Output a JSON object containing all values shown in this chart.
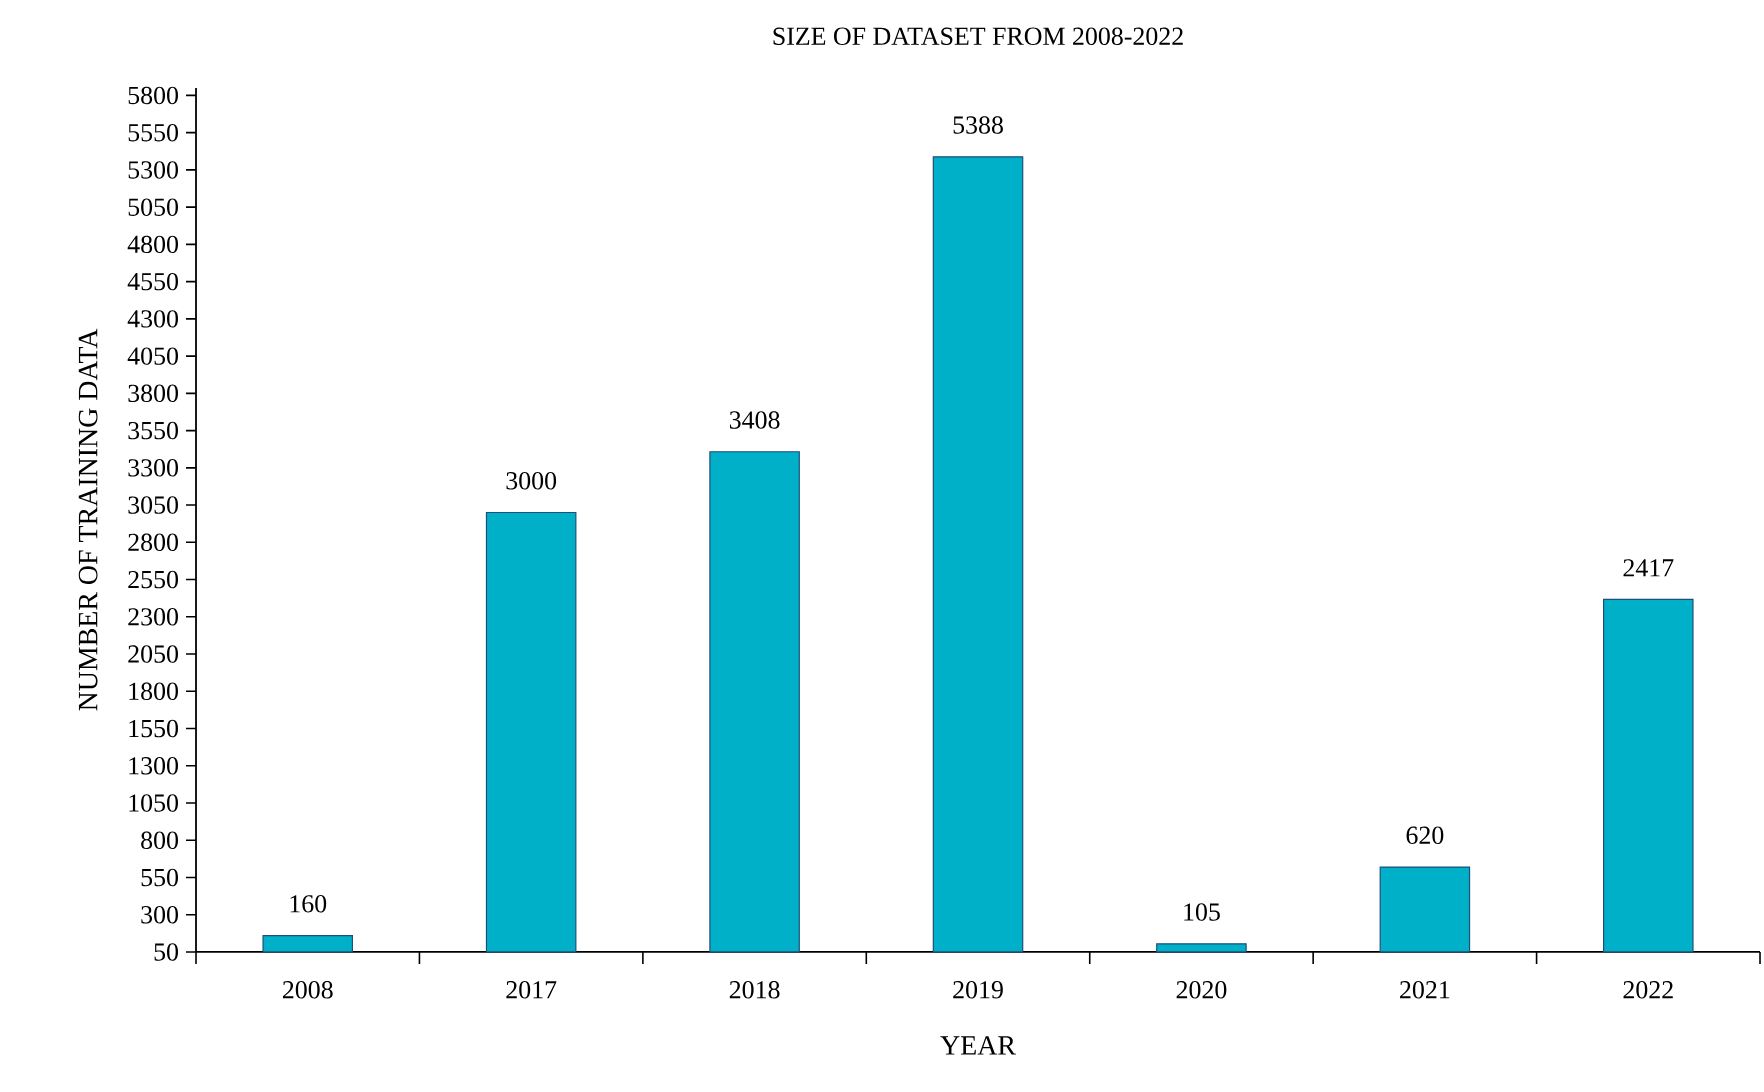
{
  "chart_data": {
    "type": "bar",
    "title": "SIZE OF DATASET FROM 2008-2022",
    "xlabel": "YEAR",
    "ylabel": "NUMBER OF TRAINING DATA",
    "categories": [
      "2008",
      "2017",
      "2018",
      "2019",
      "2020",
      "2021",
      "2022"
    ],
    "values": [
      160,
      3000,
      3408,
      5388,
      105,
      620,
      2417
    ],
    "color": "#00b0c8",
    "data_labels": true,
    "grid": false,
    "ylim": [
      50,
      5850
    ],
    "yticks": [
      50,
      300,
      550,
      800,
      1050,
      1300,
      1550,
      1800,
      2050,
      2300,
      2550,
      2800,
      3050,
      3300,
      3550,
      3800,
      4050,
      4300,
      4550,
      4800,
      5050,
      5300,
      5550,
      5800
    ]
  }
}
